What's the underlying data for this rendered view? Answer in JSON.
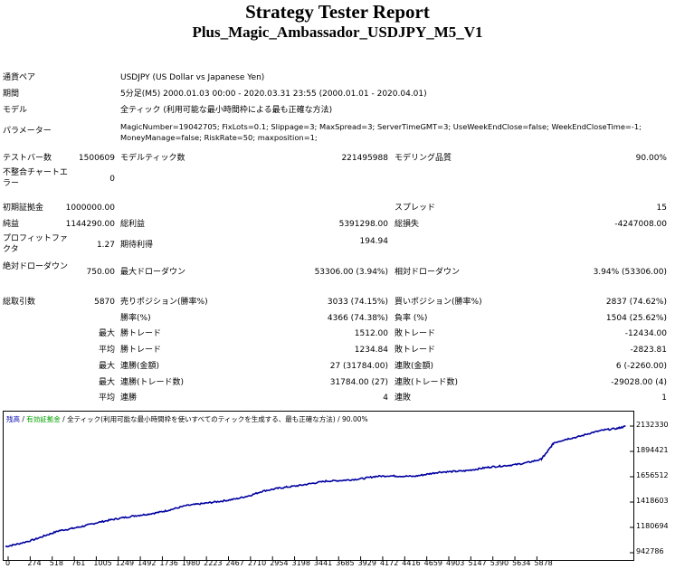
{
  "header": {
    "title": "Strategy Tester Report",
    "subtitle": "Plus_Magic_Ambassador_USDJPY_M5_V1"
  },
  "info": {
    "symbol_label": "通貨ペア",
    "symbol_value": "USDJPY (US Dollar vs Japanese Yen)",
    "period_label": "期間",
    "period_value": "5分足(M5) 2000.01.03 00:00 - 2020.03.31 23:55 (2000.01.01 - 2020.04.01)",
    "model_label": "モデル",
    "model_value": "全ティック (利用可能な最小時間枠による最も正確な方法)",
    "params_label": "パラメーター",
    "params_value": "MagicNumber=19042705; FixLots=0.1; Slippage=3; MaxSpread=3; ServerTimeGMT=3; UseWeekEndClose=false; WeekEndCloseTime=-1; MoneyManage=false; RiskRate=50; maxposition=1;"
  },
  "stats": {
    "bars_label": "テストバー数",
    "bars_value": "1500609",
    "ticks_label": "モデルティック数",
    "ticks_value": "221495988",
    "quality_label": "モデリング品質",
    "quality_value": "90.00%",
    "mismatch_label": "不整合チャートエラー",
    "mismatch_value": "0",
    "deposit_label": "初期証拠金",
    "deposit_value": "1000000.00",
    "spread_label": "スプレッド",
    "spread_value": "15",
    "net_label": "純益",
    "net_value": "1144290.00",
    "gross_profit_label": "総利益",
    "gross_profit_value": "5391298.00",
    "gross_loss_label": "総損失",
    "gross_loss_value": "-4247008.00",
    "pf_label": "プロフィットファクタ",
    "pf_value": "1.27",
    "expected_label": "期待利得",
    "expected_value": "194.94",
    "abs_dd_label": "絶対ドローダウン",
    "abs_dd_value": "750.00",
    "max_dd_label": "最大ドローダウン",
    "max_dd_value": "53306.00 (3.94%)",
    "rel_dd_label": "相対ドローダウン",
    "rel_dd_value": "3.94% (53306.00)",
    "total_trades_label": "総取引数",
    "total_trades_value": "5870",
    "short_label": "売りポジション(勝率%)",
    "short_value": "3033 (74.15%)",
    "long_label": "買いポジション(勝率%)",
    "long_value": "2837 (74.62%)",
    "win_rate_label": "勝率(%)",
    "win_rate_value": "4366 (74.38%)",
    "loss_rate_label": "負率 (%)",
    "loss_rate_value": "1504 (25.62%)",
    "max_label": "最大",
    "avg_label": "平均",
    "largest_win_label": "勝トレード",
    "largest_win_value": "1512.00",
    "largest_loss_label": "敗トレード",
    "largest_loss_value": "-12434.00",
    "avg_win_label": "勝トレード",
    "avg_win_value": "1234.84",
    "avg_loss_label": "敗トレード",
    "avg_loss_value": "-2823.81",
    "max_consec_wins_label": "連勝(金額)",
    "max_consec_wins_value": "27 (31784.00)",
    "max_consec_losses_label": "連敗(金額)",
    "max_consec_losses_value": "6 (-2260.00)",
    "max_consec_profit_label": "連勝(トレード数)",
    "max_consec_profit_value": "31784.00 (27)",
    "max_consec_loss_label": "連敗(トレード数)",
    "max_consec_loss_value": "-29028.00 (4)",
    "avg_consec_wins_label": "連勝",
    "avg_consec_wins_value": "4",
    "avg_consec_losses_label": "連敗",
    "avg_consec_losses_value": "1"
  },
  "chart_data": {
    "type": "line",
    "legend": {
      "balance": "残高",
      "sep1": " / ",
      "equity": "有効証拠金",
      "sep2": " / ",
      "model": "全ティック(利用可能な最小時間枠を使いすべてのティックを生成する、最も正確な方法)",
      "sep3": " / ",
      "quality": "90.00%"
    },
    "yticks": [
      "2132330",
      "1894421",
      "1656512",
      "1418603",
      "1180694",
      "942786"
    ],
    "xticks": [
      "0",
      "274",
      "518",
      "761",
      "1005",
      "1249",
      "1492",
      "1736",
      "1980",
      "2223",
      "2467",
      "2710",
      "2954",
      "3198",
      "3441",
      "3685",
      "3929",
      "4172",
      "4416",
      "4659",
      "4903",
      "5147",
      "5390",
      "5634",
      "5878"
    ],
    "ylim": [
      942786,
      2132330
    ],
    "xlim": [
      0,
      6000
    ],
    "series": [
      {
        "color": "#0000a0",
        "x": [
          0,
          120,
          274,
          400,
          518,
          640,
          761,
          880,
          1005,
          1120,
          1249,
          1370,
          1492,
          1600,
          1736,
          1860,
          1980,
          2100,
          2223,
          2350,
          2467,
          2600,
          2710,
          2830,
          2954,
          3080,
          3198,
          3320,
          3441,
          3560,
          3685,
          3800,
          3929,
          4050,
          4172,
          4300,
          4416,
          4540,
          4659,
          4780,
          4903,
          5020,
          5147,
          5200,
          5270,
          5390,
          5500,
          5634,
          5750,
          5878,
          5960
        ],
        "y": [
          1000000,
          1025000,
          1065000,
          1110000,
          1150000,
          1170000,
          1195000,
          1225000,
          1250000,
          1270000,
          1290000,
          1305000,
          1325000,
          1350000,
          1385000,
          1400000,
          1415000,
          1430000,
          1450000,
          1480000,
          1520000,
          1545000,
          1560000,
          1575000,
          1595000,
          1615000,
          1620000,
          1628000,
          1640000,
          1660000,
          1665000,
          1662000,
          1660000,
          1680000,
          1700000,
          1705000,
          1712000,
          1730000,
          1748000,
          1758000,
          1770000,
          1790000,
          1820000,
          1880000,
          1975000,
          2010000,
          2030000,
          2070000,
          2095000,
          2110000,
          2130000
        ]
      }
    ]
  }
}
